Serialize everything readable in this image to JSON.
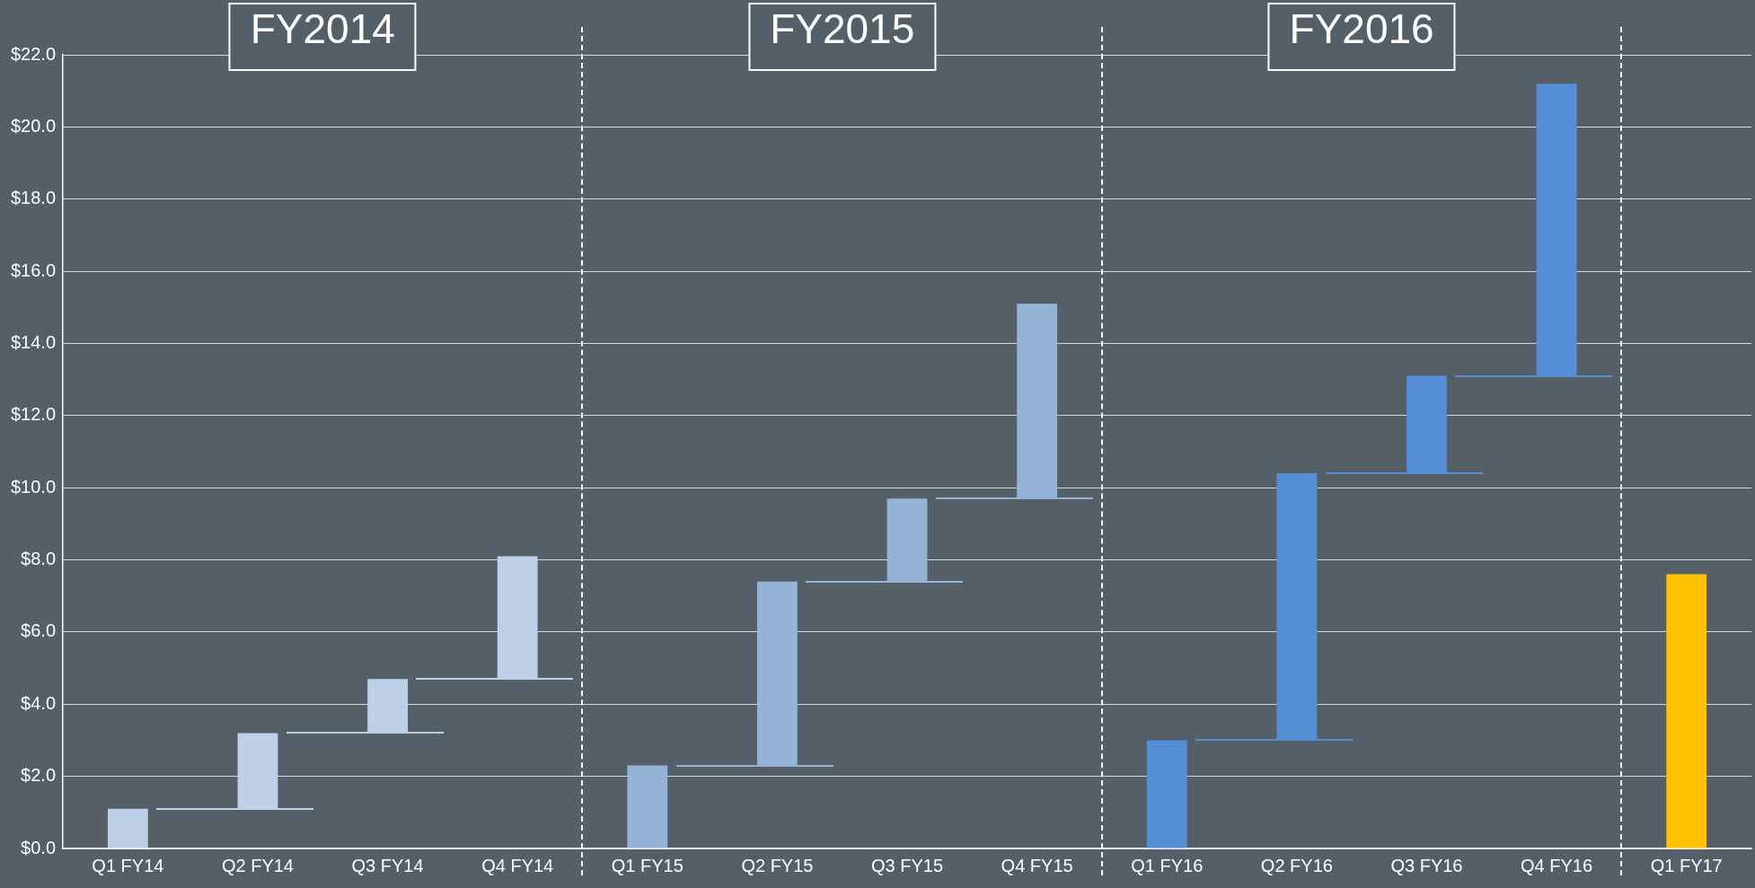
{
  "chart_data": {
    "type": "bar",
    "categories": [
      "Q1 FY14",
      "Q2 FY14",
      "Q3 FY14",
      "Q4 FY14",
      "Q1 FY15",
      "Q2 FY15",
      "Q3 FY15",
      "Q4 FY15",
      "Q1 FY16",
      "Q2 FY16",
      "Q3 FY16",
      "Q4 FY16",
      "Q1 FY17"
    ],
    "values": [
      1.1,
      2.1,
      1.5,
      3.4,
      2.3,
      5.1,
      2.3,
      5.4,
      3.0,
      7.4,
      2.7,
      8.1,
      7.6
    ],
    "base": [
      0,
      1.1,
      3.2,
      4.7,
      0,
      2.3,
      7.4,
      9.7,
      0,
      3.0,
      10.4,
      13.1,
      0
    ],
    "colors": [
      "#bdd0e8",
      "#bdd0e8",
      "#bdd0e8",
      "#bdd0e8",
      "#95b3d7",
      "#95b3d7",
      "#95b3d7",
      "#95b3d7",
      "#558ed5",
      "#558ed5",
      "#558ed5",
      "#558ed5",
      "#ffc000"
    ],
    "ylim": [
      0,
      22
    ],
    "yticks": [
      {
        "value": 0,
        "label": "$0.0"
      },
      {
        "value": 2,
        "label": "$2.0"
      },
      {
        "value": 4,
        "label": "$4.0"
      },
      {
        "value": 6,
        "label": "$6.0"
      },
      {
        "value": 8,
        "label": "$8.0"
      },
      {
        "value": 10,
        "label": "$10.0"
      },
      {
        "value": 12,
        "label": "$12.0"
      },
      {
        "value": 14,
        "label": "$14.0"
      },
      {
        "value": 16,
        "label": "$16.0"
      },
      {
        "value": 18,
        "label": "$18.0"
      },
      {
        "value": 20,
        "label": "$20.0"
      },
      {
        "value": 22,
        "label": "$22.0"
      }
    ],
    "annotations": [
      "FY2014",
      "FY2015",
      "FY2016"
    ],
    "grid": "y",
    "legend": false
  }
}
